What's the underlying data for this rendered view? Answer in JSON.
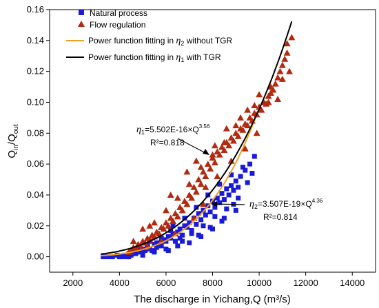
{
  "chart_data": {
    "type": "scatter",
    "xlabel": "The discharge in Yichang,Q (m³/s)",
    "ylabel": "Qin/Qout",
    "xlim": [
      1000,
      15000
    ],
    "ylim": [
      -0.01,
      0.16
    ],
    "xticks": [
      2000,
      4000,
      6000,
      8000,
      10000,
      12000,
      14000
    ],
    "yticks": [
      0.0,
      0.02,
      0.04,
      0.06,
      0.08,
      0.1,
      0.12,
      0.14,
      0.16
    ],
    "grid": false,
    "legend_position": "top-left",
    "series": [
      {
        "name": "Natural process",
        "kind": "points",
        "marker": "square",
        "color": "#1a1adb",
        "x": [
          3300,
          3500,
          3700,
          3900,
          4000,
          4200,
          4300,
          4400,
          4500,
          4600,
          4700,
          4800,
          4900,
          5000,
          5100,
          5200,
          5300,
          5400,
          5500,
          5600,
          5700,
          5800,
          5900,
          6000,
          6100,
          6200,
          6300,
          6400,
          6500,
          6600,
          6700,
          6800,
          6900,
          7000,
          7100,
          7200,
          7300,
          7400,
          7500,
          7600,
          7700,
          7800,
          7900,
          8000,
          8100,
          8200,
          8300,
          8400,
          8500,
          8600,
          8700,
          8800,
          8900,
          9000,
          9100,
          9200,
          9400,
          9600,
          9800,
          4500,
          5000,
          5500,
          6000,
          6500,
          7000,
          7500,
          8000,
          8500,
          9000,
          5200,
          5800,
          6300,
          6800,
          7300,
          7800,
          8300,
          8800,
          9300,
          4800,
          5300,
          6100,
          6600,
          7100,
          7600,
          8100,
          8600,
          9100,
          4100,
          4400,
          5600,
          6200,
          6700,
          7400,
          7900,
          8400,
          8900,
          9500,
          9700
        ],
        "y": [
          0.0,
          0.0,
          0.0,
          0.001,
          0.0,
          0.001,
          0.0,
          0.002,
          0.001,
          0.003,
          0.002,
          0.004,
          0.003,
          0.005,
          0.004,
          0.006,
          0.005,
          0.004,
          0.008,
          0.006,
          0.009,
          0.007,
          0.011,
          0.01,
          0.013,
          0.012,
          0.015,
          0.01,
          0.016,
          0.018,
          0.014,
          0.02,
          0.019,
          0.022,
          0.017,
          0.025,
          0.021,
          0.028,
          0.024,
          0.03,
          0.027,
          0.033,
          0.029,
          0.036,
          0.032,
          0.038,
          0.035,
          0.041,
          0.037,
          0.044,
          0.04,
          0.046,
          0.043,
          0.049,
          0.045,
          0.052,
          0.056,
          0.06,
          0.065,
          0.002,
          0.001,
          0.003,
          0.005,
          0.007,
          0.009,
          0.013,
          0.018,
          0.025,
          0.03,
          0.008,
          0.012,
          0.02,
          0.025,
          0.032,
          0.04,
          0.047,
          0.053,
          0.058,
          0.006,
          0.01,
          0.004,
          0.012,
          0.015,
          0.02,
          0.026,
          0.031,
          0.038,
          0.0,
          0.0,
          0.009,
          0.017,
          0.01,
          0.014,
          0.019,
          0.023,
          0.034,
          0.048,
          0.054
        ]
      },
      {
        "name": "Flow regulation",
        "kind": "points",
        "marker": "triangle",
        "color": "#b22a10",
        "x": [
          4400,
          4500,
          4600,
          4700,
          4800,
          4900,
          5000,
          5100,
          5200,
          5300,
          5400,
          5500,
          5600,
          5700,
          5800,
          5900,
          6000,
          6100,
          6200,
          6300,
          6400,
          6500,
          6600,
          6700,
          6800,
          6900,
          7000,
          7100,
          7200,
          7300,
          7400,
          7500,
          7600,
          7700,
          7800,
          7900,
          8000,
          8100,
          8200,
          8300,
          8400,
          8500,
          8600,
          8700,
          8800,
          8900,
          9000,
          9100,
          9200,
          9300,
          9400,
          9500,
          9600,
          9700,
          9800,
          9900,
          10000,
          10100,
          10200,
          10300,
          10400,
          10500,
          10600,
          10700,
          10800,
          10900,
          11000,
          11100,
          11200,
          11300,
          11400,
          5000,
          5500,
          6000,
          6500,
          7000,
          7500,
          8000,
          8500,
          9000,
          9500,
          10000,
          10500,
          11000,
          5200,
          5800,
          6400,
          7200,
          7600,
          8200,
          8800,
          9400,
          9900,
          10800,
          4600,
          5300,
          6200,
          6900,
          7300,
          7700,
          8100,
          8600,
          9200,
          9800,
          10400,
          11200
        ],
        "y": [
          0.003,
          0.004,
          0.006,
          0.005,
          0.008,
          0.007,
          0.01,
          0.009,
          0.012,
          0.011,
          0.014,
          0.013,
          0.016,
          0.015,
          0.019,
          0.018,
          0.022,
          0.02,
          0.025,
          0.023,
          0.028,
          0.026,
          0.032,
          0.03,
          0.036,
          0.034,
          0.04,
          0.038,
          0.045,
          0.042,
          0.05,
          0.047,
          0.055,
          0.052,
          0.06,
          0.057,
          0.064,
          0.061,
          0.068,
          0.066,
          0.071,
          0.069,
          0.074,
          0.072,
          0.077,
          0.075,
          0.08,
          0.078,
          0.083,
          0.082,
          0.086,
          0.085,
          0.09,
          0.088,
          0.093,
          0.092,
          0.097,
          0.095,
          0.1,
          0.099,
          0.104,
          0.106,
          0.108,
          0.112,
          0.116,
          0.12,
          0.124,
          0.128,
          0.132,
          0.12,
          0.142,
          0.018,
          0.022,
          0.03,
          0.038,
          0.047,
          0.058,
          0.066,
          0.074,
          0.085,
          0.095,
          0.105,
          0.11,
          0.115,
          0.006,
          0.01,
          0.015,
          0.025,
          0.034,
          0.052,
          0.062,
          0.07,
          0.08,
          0.102,
          0.01,
          0.02,
          0.04,
          0.055,
          0.062,
          0.045,
          0.072,
          0.083,
          0.09,
          0.098,
          0.1,
          0.138
        ]
      },
      {
        "name": "Power function fitting in η2 without TGR",
        "kind": "curve",
        "color": "#f0a020",
        "coef": 3.507e-19,
        "exponent": 4.36,
        "x_range": [
          3200,
          10000
        ]
      },
      {
        "name": "Power function fitting in η1 with TGR",
        "kind": "curve",
        "color": "#000000",
        "coef": 5.502e-16,
        "exponent": 3.56,
        "x_range": [
          3200,
          11400
        ]
      }
    ],
    "annotations": [
      {
        "var": "η",
        "sub": "1",
        "formula": "=5.502E-16×Q",
        "exp": "3.56",
        "r2": "R²=0.818"
      },
      {
        "var": "η",
        "sub": "2",
        "formula": "=3.507E-19×Q",
        "exp": "4.36",
        "r2": "R²=0.814"
      }
    ]
  }
}
